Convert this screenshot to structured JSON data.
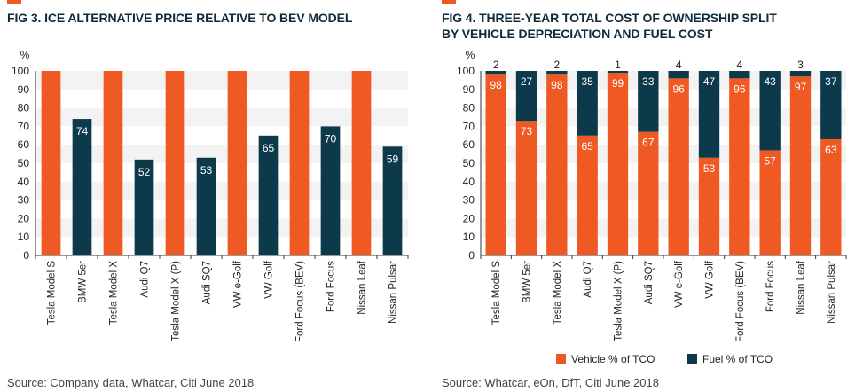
{
  "figures": {
    "fig3": {
      "title": "FIG 3. ICE ALTERNATIVE PRICE RELATIVE TO BEV MODEL",
      "source": "Source: Company data, Whatcar, Citi June 2018"
    },
    "fig4": {
      "title_line1": "FIG 4. THREE-YEAR TOTAL COST OF OWNERSHIP SPLIT",
      "title_line2": "BY VEHICLE DEPRECIATION AND FUEL COST",
      "source": "Source: Whatcar, eOn, DfT, Citi June 2018",
      "legend": [
        {
          "label": "Vehicle % of TCO",
          "color": "#ef5a24"
        },
        {
          "label": "Fuel % of TCO",
          "color": "#0d3a4b"
        }
      ]
    }
  },
  "colors": {
    "bev": "#ef5a24",
    "ice": "#0d3a4b",
    "band": "#f3f3f3",
    "axis": "#333333"
  },
  "chart_data": [
    {
      "type": "bar",
      "title": "FIG 3. ICE ALTERNATIVE PRICE RELATIVE TO BEV MODEL",
      "ylabel": "%",
      "ylim": [
        0,
        100
      ],
      "yticks": [
        0,
        10,
        20,
        30,
        40,
        50,
        60,
        70,
        80,
        90,
        100
      ],
      "categories": [
        "Tesla Model S",
        "BMW 5er",
        "Tesla Model X",
        "Audi Q7",
        "Tesla Model X (P)",
        "Audi SQ7",
        "VW e-Golf",
        "VW Golf",
        "Ford Focus (BEV)",
        "Ford Focus",
        "Nissan Leaf",
        "Nissan Pulsar"
      ],
      "values": [
        100,
        74,
        100,
        52,
        100,
        53,
        100,
        65,
        100,
        70,
        100,
        59
      ],
      "value_labels": [
        "",
        "74",
        "",
        "52",
        "",
        "53",
        "",
        "65",
        "",
        "70",
        "",
        "59"
      ],
      "bar_colors": [
        "#ef5a24",
        "#0d3a4b",
        "#ef5a24",
        "#0d3a4b",
        "#ef5a24",
        "#0d3a4b",
        "#ef5a24",
        "#0d3a4b",
        "#ef5a24",
        "#0d3a4b",
        "#ef5a24",
        "#0d3a4b"
      ],
      "grid": "alternating horizontal bands",
      "legend": "none"
    },
    {
      "type": "bar",
      "stacked": true,
      "title": "FIG 4. THREE-YEAR TOTAL COST OF OWNERSHIP SPLIT BY VEHICLE DEPRECIATION AND FUEL COST",
      "ylabel": "%",
      "ylim": [
        0,
        100
      ],
      "yticks": [
        0,
        10,
        20,
        30,
        40,
        50,
        60,
        70,
        80,
        90,
        100
      ],
      "categories": [
        "Tesla Model S",
        "BMW 5er",
        "Tesla Model X",
        "Audi Q7",
        "Tesla Model X (P)",
        "Audi SQ7",
        "VW e-Golf",
        "VW Golf",
        "Ford Focus (BEV)",
        "Ford Focus",
        "Nissan Leaf",
        "Nissan Pulsar"
      ],
      "series": [
        {
          "name": "Vehicle % of TCO",
          "values": [
            98,
            73,
            98,
            65,
            99,
            67,
            96,
            53,
            96,
            57,
            97,
            63
          ],
          "color": "#ef5a24"
        },
        {
          "name": "Fuel % of TCO",
          "values": [
            2,
            27,
            2,
            35,
            1,
            33,
            4,
            47,
            4,
            43,
            3,
            37
          ],
          "color": "#0d3a4b"
        }
      ],
      "grid": "alternating horizontal bands",
      "legend": "bottom"
    }
  ]
}
